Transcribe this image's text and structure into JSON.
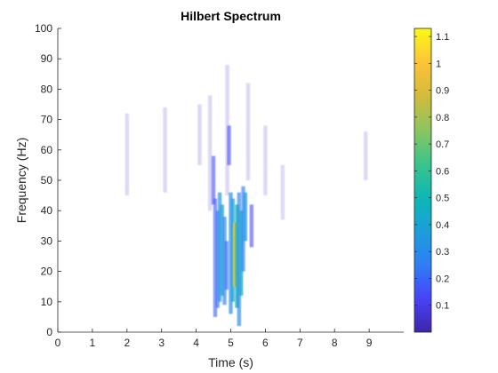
{
  "chart_data": {
    "type": "heatmap",
    "title": "Hilbert Spectrum",
    "xlabel": "Time (s)",
    "ylabel": "Frequency (Hz)",
    "xlim": [
      0,
      10
    ],
    "ylim": [
      0,
      100
    ],
    "xticks": [
      "0",
      "1",
      "2",
      "3",
      "4",
      "5",
      "6",
      "7",
      "8",
      "9"
    ],
    "yticks": [
      "0",
      "10",
      "20",
      "30",
      "40",
      "50",
      "60",
      "70",
      "80",
      "90",
      "100"
    ],
    "colorbar": {
      "range": [
        0,
        1.13
      ],
      "ticks": [
        "0.1",
        "0.2",
        "0.3",
        "0.4",
        "0.5",
        "0.6",
        "0.7",
        "0.8",
        "0.9",
        "1",
        "1.1"
      ],
      "colormap": [
        "#3e26a8",
        "#4743f8",
        "#2f7ff5",
        "#1b9fdb",
        "#0cb8b3",
        "#3bc48a",
        "#8cc55f",
        "#d2bb3b",
        "#fec337",
        "#f9fb15"
      ]
    },
    "strokes": [
      {
        "t": 2.0,
        "f0": 45,
        "f1": 72,
        "value": 0.05
      },
      {
        "t": 3.1,
        "f0": 46,
        "f1": 74,
        "value": 0.05
      },
      {
        "t": 4.1,
        "f0": 55,
        "f1": 75,
        "value": 0.05
      },
      {
        "t": 4.4,
        "f0": 40,
        "f1": 78,
        "value": 0.05
      },
      {
        "t": 4.9,
        "f0": 45,
        "f1": 88,
        "value": 0.05
      },
      {
        "t": 5.5,
        "f0": 50,
        "f1": 82,
        "value": 0.05
      },
      {
        "t": 6.0,
        "f0": 45,
        "f1": 68,
        "value": 0.05
      },
      {
        "t": 6.5,
        "f0": 37,
        "f1": 55,
        "value": 0.08
      },
      {
        "t": 8.9,
        "f0": 50,
        "f1": 66,
        "value": 0.05
      },
      {
        "t": 4.5,
        "f0": 42,
        "f1": 58,
        "value": 0.15
      },
      {
        "t": 4.55,
        "f0": 5,
        "f1": 44,
        "value": 0.18
      },
      {
        "t": 4.62,
        "f0": 8,
        "f1": 40,
        "value": 0.22
      },
      {
        "t": 4.68,
        "f0": 10,
        "f1": 46,
        "value": 0.32
      },
      {
        "t": 4.75,
        "f0": 12,
        "f1": 42,
        "value": 0.4
      },
      {
        "t": 4.82,
        "f0": 9,
        "f1": 38,
        "value": 0.26
      },
      {
        "t": 4.88,
        "f0": 14,
        "f1": 30,
        "value": 0.2
      },
      {
        "t": 4.95,
        "f0": 55,
        "f1": 68,
        "value": 0.15
      },
      {
        "t": 5.0,
        "f0": 6,
        "f1": 46,
        "value": 0.3
      },
      {
        "t": 5.06,
        "f0": 10,
        "f1": 44,
        "value": 0.38
      },
      {
        "t": 5.12,
        "f0": 15,
        "f1": 36,
        "value": 0.95
      },
      {
        "t": 5.18,
        "f0": 8,
        "f1": 42,
        "value": 0.5
      },
      {
        "t": 5.24,
        "f0": 2,
        "f1": 46,
        "value": 0.28
      },
      {
        "t": 5.3,
        "f0": 12,
        "f1": 40,
        "value": 0.42
      },
      {
        "t": 5.36,
        "f0": 20,
        "f1": 48,
        "value": 0.25
      },
      {
        "t": 5.42,
        "f0": 30,
        "f1": 46,
        "value": 0.35
      },
      {
        "t": 5.6,
        "f0": 28,
        "f1": 42,
        "value": 0.12
      }
    ]
  }
}
